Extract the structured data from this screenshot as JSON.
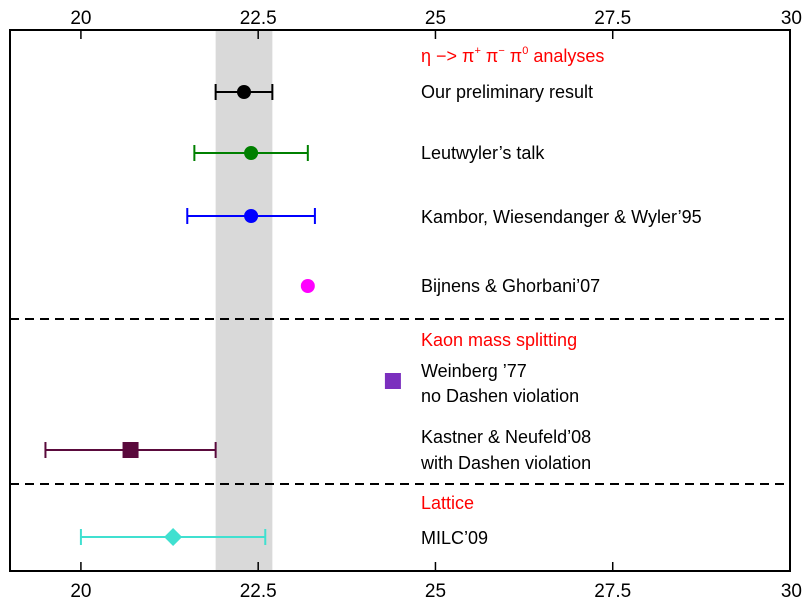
{
  "chart_data": {
    "type": "scatter",
    "xlim": [
      19,
      30
    ],
    "x_ticks": [
      20,
      22.5,
      25,
      27.5,
      30
    ],
    "x_tick_labels": [
      "20",
      "22.5",
      "25",
      "27.5",
      "30"
    ],
    "band": {
      "x_from": 21.9,
      "x_to": 22.7,
      "color": "#d9d9d9"
    },
    "groups": [
      {
        "header": "η −> π+ π− π0 analyses",
        "header_color": "#ff0000",
        "entries": [
          {
            "label": "Our preliminary result",
            "x": 22.3,
            "err_low": 21.9,
            "err_high": 22.7,
            "marker": "circle",
            "color": "#000000"
          },
          {
            "label": "Leutwyler’s talk",
            "x": 22.4,
            "err_low": 21.6,
            "err_high": 23.2,
            "marker": "circle",
            "color": "#008000"
          },
          {
            "label": "Kambor, Wiesendanger & Wyler’95",
            "x": 22.4,
            "err_low": 21.5,
            "err_high": 23.3,
            "marker": "circle",
            "color": "#0000ff"
          },
          {
            "label": "Bijnens & Ghorbani’07",
            "x": 23.2,
            "err_low": null,
            "err_high": null,
            "marker": "circle",
            "color": "#ff00ff"
          }
        ]
      },
      {
        "header": "Kaon mass splitting",
        "header_color": "#ff0000",
        "entries": [
          {
            "label": "Weinberg ’77",
            "label_line2": "no Dashen violation",
            "x": 24.4,
            "err_low": null,
            "err_high": null,
            "marker": "square",
            "color": "#7b2fbe"
          },
          {
            "label": "Kastner & Neufeld’08",
            "label_line2": "with Dashen violation",
            "x": 20.7,
            "err_low": 19.5,
            "err_high": 21.9,
            "marker": "square",
            "color": "#5a0a3c"
          }
        ]
      },
      {
        "header": "Lattice",
        "header_color": "#ff0000",
        "entries": [
          {
            "label": "MILC’09",
            "x": 21.3,
            "err_low": 20.0,
            "err_high": 22.6,
            "marker": "diamond",
            "color": "#40e0d0"
          }
        ]
      }
    ]
  }
}
